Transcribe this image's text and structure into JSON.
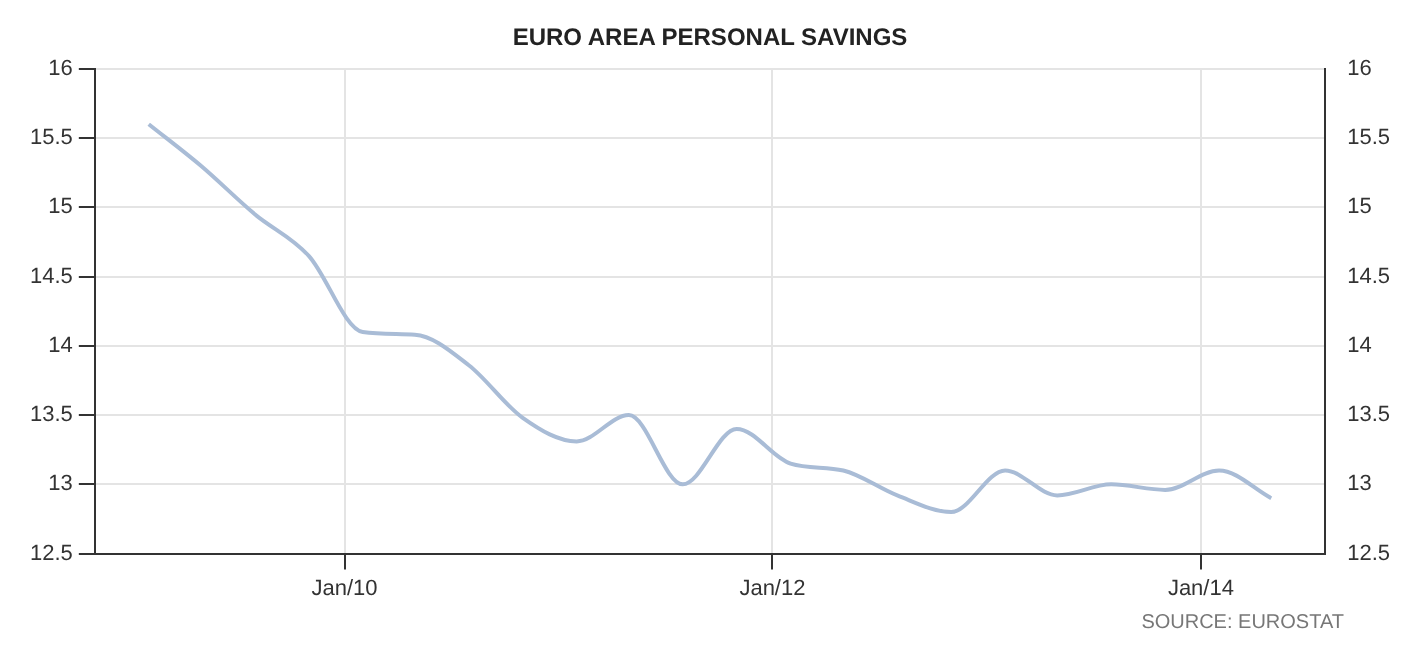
{
  "chart_data": {
    "type": "line",
    "title": "EURO AREA PERSONAL SAVINGS",
    "x": [
      "2009-02",
      "2009-05",
      "2009-08",
      "2009-11",
      "2010-02",
      "2010-05",
      "2010-08",
      "2010-11",
      "2011-02",
      "2011-05",
      "2011-08",
      "2011-11",
      "2012-02",
      "2012-05",
      "2012-08",
      "2012-11",
      "2013-02",
      "2013-05",
      "2013-08",
      "2013-11",
      "2014-02",
      "2014-05"
    ],
    "series": [
      {
        "color": "#a9bcd6",
        "values": [
          15.6,
          15.3,
          14.95,
          14.65,
          14.1,
          14.08,
          13.86,
          13.48,
          13.31,
          13.5,
          13.0,
          13.4,
          13.15,
          13.1,
          12.92,
          12.8,
          13.1,
          12.92,
          13.0,
          12.96,
          13.1,
          12.9
        ]
      }
    ],
    "xlim": [
      "2008-11",
      "2014-08"
    ],
    "xticks": [
      {
        "value": "2010-01",
        "label": "Jan/10"
      },
      {
        "value": "2012-01",
        "label": "Jan/12"
      },
      {
        "value": "2014-01",
        "label": "Jan/14"
      }
    ],
    "ylim": [
      12.5,
      16
    ],
    "yticks": [
      12.5,
      13,
      13.5,
      14,
      14.5,
      15,
      15.5,
      16
    ],
    "y2lim": [
      12.5,
      16
    ],
    "y2ticks": [
      12.5,
      13,
      13.5,
      14,
      14.5,
      15,
      15.5,
      16
    ],
    "grid": true,
    "legend": false,
    "marker": "none",
    "line_style": "solid",
    "annotations": [
      "SOURCE: EUROSTAT"
    ]
  }
}
